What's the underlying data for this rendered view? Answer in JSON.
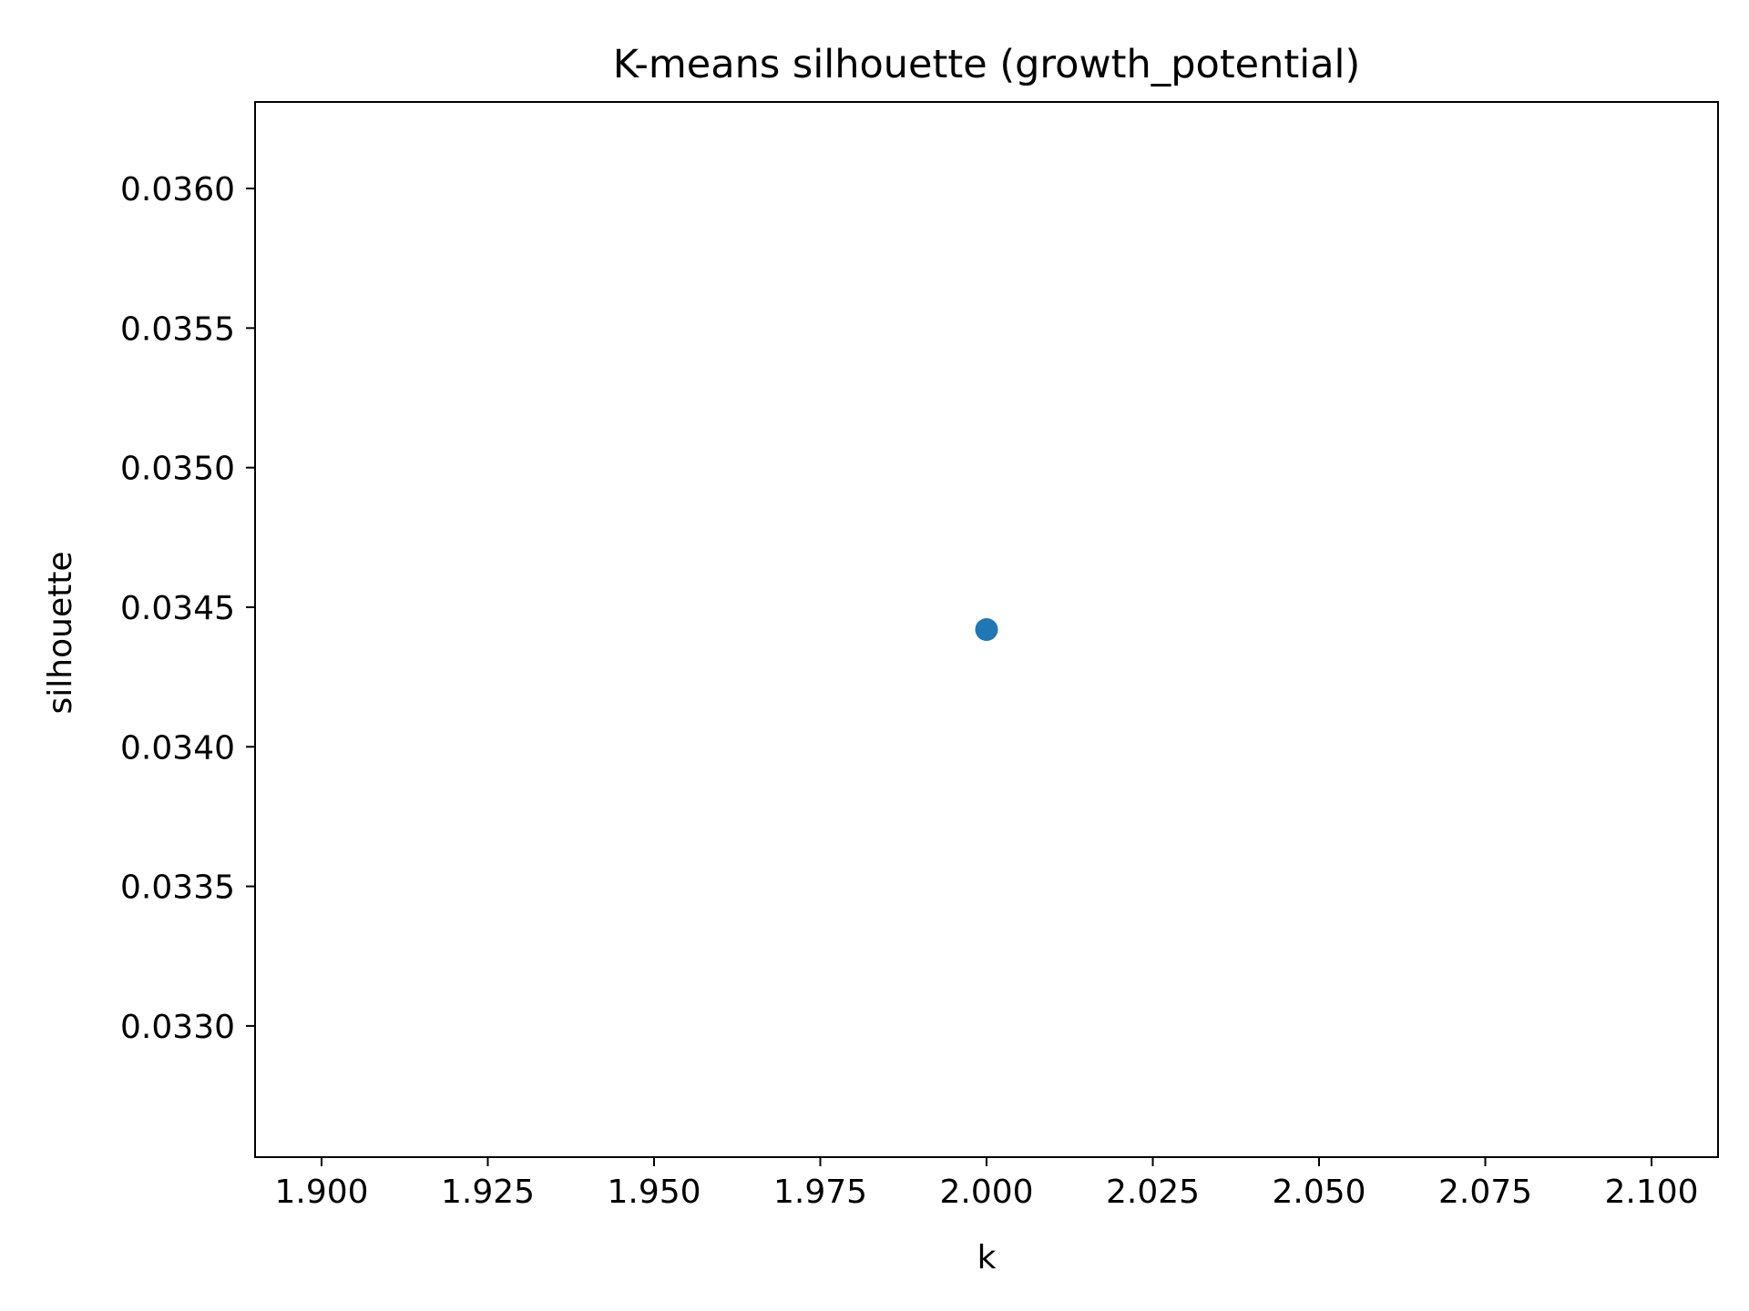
{
  "chart_data": {
    "type": "scatter",
    "title": "K-means silhouette (growth_potential)",
    "xlabel": "k",
    "ylabel": "silhouette",
    "xlim": [
      1.89,
      2.11
    ],
    "ylim": [
      0.03253,
      0.03631
    ],
    "xticks": [
      1.9,
      1.925,
      1.95,
      1.975,
      2.0,
      2.025,
      2.05,
      2.075,
      2.1
    ],
    "xtick_labels": [
      "1.900",
      "1.925",
      "1.950",
      "1.975",
      "2.000",
      "2.025",
      "2.050",
      "2.075",
      "2.100"
    ],
    "yticks": [
      0.033,
      0.0335,
      0.034,
      0.0345,
      0.035,
      0.0355,
      0.036
    ],
    "ytick_labels": [
      "0.0330",
      "0.0335",
      "0.0340",
      "0.0345",
      "0.0350",
      "0.0355",
      "0.0360"
    ],
    "grid": false,
    "series": [
      {
        "x": [
          2.0
        ],
        "y": [
          0.03442
        ],
        "color": "#1f77b4"
      }
    ]
  }
}
